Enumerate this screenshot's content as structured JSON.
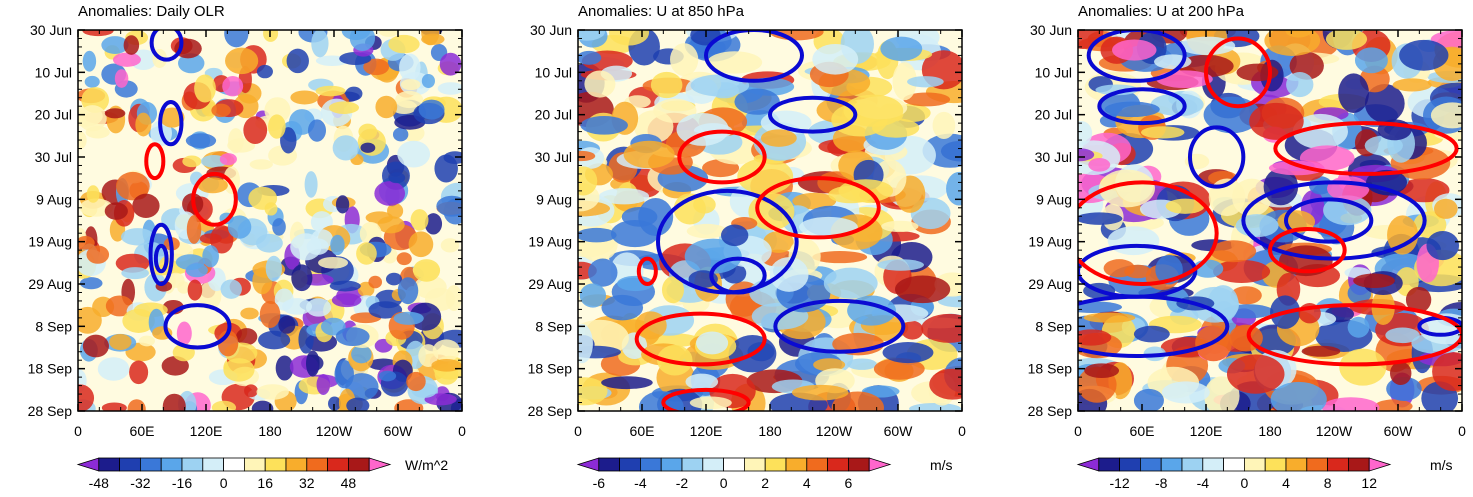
{
  "chart_data": [
    {
      "type": "heatmap",
      "title": "Anomalies: Daily OLR",
      "x_ticks": [
        "0",
        "60E",
        "120E",
        "180",
        "120W",
        "60W",
        "0"
      ],
      "y_ticks": [
        "30 Jun",
        "10 Jul",
        "20 Jul",
        "30 Jul",
        "9 Aug",
        "19 Aug",
        "29 Aug",
        "8 Sep",
        "18 Sep",
        "28 Sep"
      ],
      "xlim": [
        0,
        360
      ],
      "ylim_days": [
        0,
        90
      ],
      "colorbar": {
        "unit": "W/m^2",
        "labels": [
          "-48",
          "-32",
          "-16",
          "0",
          "16",
          "32",
          "48"
        ],
        "levels": [
          -48,
          -40,
          -32,
          -24,
          -16,
          -8,
          0,
          8,
          16,
          24,
          32,
          40,
          48
        ],
        "colors": [
          "#8c2bd6",
          "#1c1c8c",
          "#1f3fb0",
          "#3a78d8",
          "#5aa6ea",
          "#9dd2f2",
          "#d4eef8",
          "#ffffff",
          "#fff5b8",
          "#fde15a",
          "#f8ad2c",
          "#f06b1e",
          "#d9281c",
          "#a81818",
          "#ff66cc"
        ]
      },
      "contours": [
        {
          "color": "#0a0ad2",
          "center": [
            83,
            3
          ],
          "radii": [
            14,
            4
          ]
        },
        {
          "color": "#0a0ad2",
          "center": [
            87,
            22
          ],
          "radii": [
            10,
            5
          ]
        },
        {
          "color": "#0a0ad2",
          "center": [
            78,
            53
          ],
          "radii": [
            10,
            7
          ]
        },
        {
          "color": "#0a0ad2",
          "center": [
            78,
            54
          ],
          "radii": [
            5,
            3
          ]
        },
        {
          "color": "#0a0ad2",
          "center": [
            112,
            70
          ],
          "radii": [
            30,
            5
          ]
        },
        {
          "color": "#ff0000",
          "center": [
            72,
            31
          ],
          "radii": [
            8,
            4
          ]
        },
        {
          "color": "#ff0000",
          "center": [
            128,
            40
          ],
          "radii": [
            20,
            6
          ]
        }
      ]
    },
    {
      "type": "heatmap",
      "title": "Anomalies: U at 850 hPa",
      "x_ticks": [
        "0",
        "60E",
        "120E",
        "180",
        "120W",
        "60W",
        "0"
      ],
      "y_ticks": [
        "30 Jun",
        "10 Jul",
        "20 Jul",
        "30 Jul",
        "9 Aug",
        "19 Aug",
        "29 Aug",
        "8 Sep",
        "18 Sep",
        "28 Sep"
      ],
      "xlim": [
        0,
        360
      ],
      "ylim_days": [
        0,
        90
      ],
      "colorbar": {
        "unit": "m/s",
        "labels": [
          "-6",
          "-4",
          "-2",
          "0",
          "2",
          "4",
          "6"
        ],
        "levels": [
          -6,
          -5,
          -4,
          -3,
          -2,
          -1,
          0,
          1,
          2,
          3,
          4,
          5,
          6
        ],
        "colors": [
          "#8c2bd6",
          "#1c1c8c",
          "#1f3fb0",
          "#3a78d8",
          "#5aa6ea",
          "#9dd2f2",
          "#d4eef8",
          "#ffffff",
          "#fff5b8",
          "#fde15a",
          "#f8ad2c",
          "#f06b1e",
          "#d9281c",
          "#a81818",
          "#ff66cc"
        ]
      },
      "contours": [
        {
          "color": "#0a0ad2",
          "center": [
            165,
            6
          ],
          "radii": [
            45,
            6
          ]
        },
        {
          "color": "#0a0ad2",
          "center": [
            220,
            20
          ],
          "radii": [
            40,
            4
          ]
        },
        {
          "color": "#0a0ad2",
          "center": [
            140,
            50
          ],
          "radii": [
            65,
            12
          ]
        },
        {
          "color": "#0a0ad2",
          "center": [
            150,
            58
          ],
          "radii": [
            25,
            4
          ]
        },
        {
          "color": "#0a0ad2",
          "center": [
            245,
            70
          ],
          "radii": [
            60,
            6
          ]
        },
        {
          "color": "#ff0000",
          "center": [
            135,
            30
          ],
          "radii": [
            40,
            6
          ]
        },
        {
          "color": "#ff0000",
          "center": [
            225,
            42
          ],
          "radii": [
            57,
            7
          ]
        },
        {
          "color": "#ff0000",
          "center": [
            115,
            73
          ],
          "radii": [
            60,
            6
          ]
        },
        {
          "color": "#ff0000",
          "center": [
            120,
            88
          ],
          "radii": [
            40,
            3
          ]
        },
        {
          "color": "#ff0000",
          "center": [
            65,
            57
          ],
          "radii": [
            8,
            3
          ]
        }
      ]
    },
    {
      "type": "heatmap",
      "title": "Anomalies: U at 200 hPa",
      "x_ticks": [
        "0",
        "60E",
        "120E",
        "180",
        "120W",
        "60W",
        "0"
      ],
      "y_ticks": [
        "30 Jun",
        "10 Jul",
        "20 Jul",
        "30 Jul",
        "9 Aug",
        "19 Aug",
        "29 Aug",
        "8 Sep",
        "18 Sep",
        "28 Sep"
      ],
      "xlim": [
        0,
        360
      ],
      "ylim_days": [
        0,
        90
      ],
      "colorbar": {
        "unit": "m/s",
        "labels": [
          "-12",
          "-8",
          "-4",
          "0",
          "4",
          "8",
          "12"
        ],
        "levels": [
          -14,
          -12,
          -10,
          -8,
          -6,
          -4,
          -2,
          0,
          2,
          4,
          6,
          8,
          10,
          12,
          14
        ],
        "colors": [
          "#8c2bd6",
          "#1c1c8c",
          "#1f3fb0",
          "#3a78d8",
          "#5aa6ea",
          "#9dd2f2",
          "#d4eef8",
          "#ffffff",
          "#fff5b8",
          "#fde15a",
          "#f8ad2c",
          "#f06b1e",
          "#d9281c",
          "#a81818",
          "#ff66cc"
        ]
      },
      "contours": [
        {
          "color": "#0a0ad2",
          "center": [
            55,
            6
          ],
          "radii": [
            45,
            6
          ]
        },
        {
          "color": "#0a0ad2",
          "center": [
            60,
            18
          ],
          "radii": [
            40,
            4
          ]
        },
        {
          "color": "#0a0ad2",
          "center": [
            130,
            30
          ],
          "radii": [
            25,
            7
          ]
        },
        {
          "color": "#0a0ad2",
          "center": [
            240,
            45
          ],
          "radii": [
            85,
            9
          ]
        },
        {
          "color": "#0a0ad2",
          "center": [
            235,
            45
          ],
          "radii": [
            40,
            5
          ]
        },
        {
          "color": "#0a0ad2",
          "center": [
            55,
            57
          ],
          "radii": [
            55,
            6
          ]
        },
        {
          "color": "#0a0ad2",
          "center": [
            55,
            70
          ],
          "radii": [
            85,
            7
          ]
        },
        {
          "color": "#0a0ad2",
          "center": [
            340,
            70
          ],
          "radii": [
            20,
            2
          ]
        },
        {
          "color": "#ff0000",
          "center": [
            150,
            10
          ],
          "radii": [
            30,
            8
          ]
        },
        {
          "color": "#ff0000",
          "center": [
            270,
            28
          ],
          "radii": [
            85,
            6
          ]
        },
        {
          "color": "#ff0000",
          "center": [
            260,
            72
          ],
          "radii": [
            100,
            7
          ]
        },
        {
          "color": "#ff0000",
          "center": [
            60,
            48
          ],
          "radii": [
            70,
            12
          ]
        },
        {
          "color": "#ff0000",
          "center": [
            215,
            52
          ],
          "radii": [
            35,
            5
          ]
        }
      ]
    }
  ]
}
